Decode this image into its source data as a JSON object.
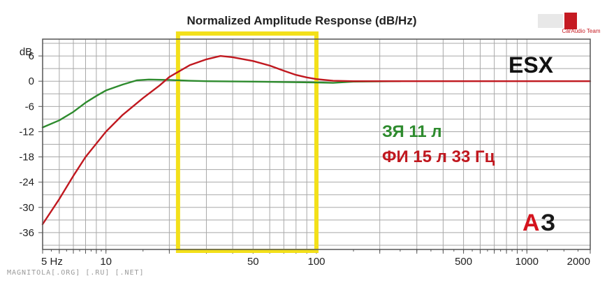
{
  "chart_data": {
    "type": "line",
    "title": "Normalized Amplitude Response (dB/Hz)",
    "xscale": "log",
    "xlim": [
      5,
      2000
    ],
    "ylim": [
      -40,
      10
    ],
    "y_unit": "dB",
    "xlabel": "",
    "ylabel": "",
    "x_tick_labels": [
      {
        "x": 5,
        "label": "5 Hz"
      },
      {
        "x": 10,
        "label": "10"
      },
      {
        "x": 50,
        "label": "50"
      },
      {
        "x": 100,
        "label": "100"
      },
      {
        "x": 500,
        "label": "500"
      },
      {
        "x": 1000,
        "label": "1000"
      },
      {
        "x": 2000,
        "label": "2000"
      }
    ],
    "y_ticks": [
      6,
      0,
      -6,
      -12,
      -18,
      -24,
      -30,
      -36
    ],
    "grid": true,
    "highlight_band": {
      "x_range": [
        22,
        100
      ],
      "color": "#f3e01a"
    },
    "series": [
      {
        "name": "ЗЯ 11 л",
        "color": "#2e8b2e",
        "points": [
          [
            5,
            -11
          ],
          [
            6,
            -9.3
          ],
          [
            7,
            -7.3
          ],
          [
            8,
            -5.1
          ],
          [
            9,
            -3.5
          ],
          [
            10,
            -2.2
          ],
          [
            12,
            -0.8
          ],
          [
            14,
            0.2
          ],
          [
            16,
            0.4
          ],
          [
            20,
            0.3
          ],
          [
            25,
            0.1
          ],
          [
            30,
            0
          ],
          [
            50,
            -0.1
          ],
          [
            100,
            -0.3
          ],
          [
            120,
            -0.4
          ],
          [
            150,
            -0.1
          ],
          [
            250,
            0
          ]
        ]
      },
      {
        "name": "ФИ 15 л 33 Гц",
        "color": "#c0181f",
        "points": [
          [
            5,
            -34
          ],
          [
            6,
            -28
          ],
          [
            7,
            -22.5
          ],
          [
            8,
            -18
          ],
          [
            10,
            -12
          ],
          [
            12,
            -8
          ],
          [
            15,
            -4
          ],
          [
            18,
            -1
          ],
          [
            20,
            1
          ],
          [
            25,
            3.8
          ],
          [
            30,
            5.2
          ],
          [
            35,
            6
          ],
          [
            40,
            5.7
          ],
          [
            50,
            4.8
          ],
          [
            60,
            3.7
          ],
          [
            70,
            2.5
          ],
          [
            80,
            1.5
          ],
          [
            90,
            0.9
          ],
          [
            100,
            0.5
          ],
          [
            120,
            0.1
          ],
          [
            150,
            0
          ],
          [
            2000,
            0
          ]
        ]
      }
    ]
  },
  "labels": {
    "model": "ESX",
    "logo": "АЗ",
    "corner_brand": "CarAudio Team",
    "watermark": "MAGNITOLA[.ORG] [.RU] [.NET]"
  },
  "colors": {
    "background": "#ffffff",
    "plot_background": "#ffffff",
    "grid": "#a8a8a8",
    "axis": "#555555",
    "logo_red": "#d4141e",
    "logo_dark": "#1a1a1a"
  }
}
